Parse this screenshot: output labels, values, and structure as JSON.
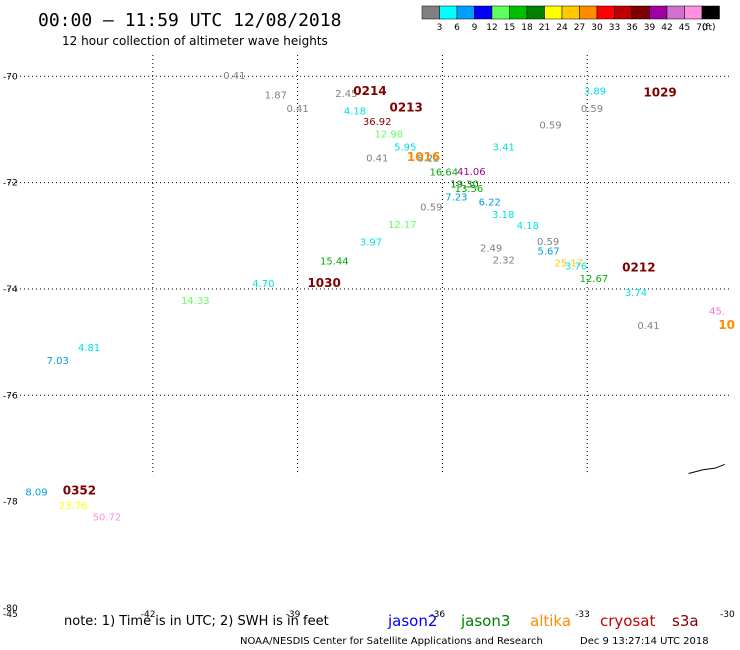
{
  "header": {
    "title": "00:00 – 11:59 UTC 12/08/2018",
    "subtitle": "12 hour collection of altimeter wave heights"
  },
  "legend": {
    "bins": [
      {
        "label": "3",
        "color": "#808080"
      },
      {
        "label": "6",
        "color": "#00ffff"
      },
      {
        "label": "9",
        "color": "#00a0ff"
      },
      {
        "label": "12",
        "color": "#0000ff"
      },
      {
        "label": "15",
        "color": "#60ff60"
      },
      {
        "label": "18",
        "color": "#00c000"
      },
      {
        "label": "21",
        "color": "#008000"
      },
      {
        "label": "24",
        "color": "#ffff00"
      },
      {
        "label": "27",
        "color": "#ffc800"
      },
      {
        "label": "30",
        "color": "#ff8c00"
      },
      {
        "label": "33",
        "color": "#ff0000"
      },
      {
        "label": "36",
        "color": "#c00000"
      },
      {
        "label": "39",
        "color": "#800000"
      },
      {
        "label": "42",
        "color": "#a000a0"
      },
      {
        "label": "45",
        "color": "#d070d0"
      },
      {
        "label": "70",
        "color": "#ff90e0"
      },
      {
        "label": "",
        "color": "#000000"
      }
    ],
    "unit": "(ft)"
  },
  "footer": {
    "note": "note: 1) Time is in UTC; 2) SWH is in feet",
    "credit_left": "NOAA/NESDIS Center for Satellite Applications and Research",
    "credit_right": "Dec  9 13:27:14 UTC 2018",
    "satellites": [
      {
        "name": "jason2",
        "color": "#0000ff"
      },
      {
        "name": "jason3",
        "color": "#008000"
      },
      {
        "name": "altika",
        "color": "#ff8c00"
      },
      {
        "name": "cryosat",
        "color": "#c00000"
      },
      {
        "name": "s3a",
        "color": "#800000"
      }
    ]
  },
  "chart_data": {
    "type": "scatter",
    "lat_ticks": [
      "-70",
      "-72",
      "-74",
      "-76",
      "-78",
      "-80"
    ],
    "lon_ticks": [
      "-45",
      "-42",
      "-39",
      "-36",
      "-33",
      "-30"
    ],
    "xlim": [
      -45,
      -30
    ],
    "ylim": [
      -80,
      -69.6
    ],
    "grid": true,
    "wave_heights": [
      {
        "lon": -40.31,
        "lat": -70.05,
        "label": "0.41",
        "color": "#808080"
      },
      {
        "lon": -39.45,
        "lat": -70.42,
        "label": "1.87",
        "color": "#808080"
      },
      {
        "lon": -39.0,
        "lat": -70.67,
        "label": "0.41",
        "color": "#808080"
      },
      {
        "lon": -37.99,
        "lat": -70.39,
        "label": "2.45",
        "color": "#808080"
      },
      {
        "lon": -37.81,
        "lat": -70.72,
        "label": "4.18",
        "color": "#00e0e0"
      },
      {
        "lon": -37.35,
        "lat": -70.92,
        "label": "36.92",
        "color": "#800000"
      },
      {
        "lon": -37.11,
        "lat": -71.15,
        "label": "12.98",
        "color": "#60ff60"
      },
      {
        "lon": -36.77,
        "lat": -71.4,
        "label": "5.95",
        "color": "#00e0e0"
      },
      {
        "lon": -37.35,
        "lat": -71.6,
        "label": "0.41",
        "color": "#808080"
      },
      {
        "lon": -36.29,
        "lat": -71.6,
        "label": "8.22",
        "color": "#00a0e0"
      },
      {
        "lon": -35.97,
        "lat": -71.87,
        "label": "16.64",
        "color": "#00b000"
      },
      {
        "lon": -35.4,
        "lat": -71.86,
        "label": "41.06",
        "color": "#a000a0"
      },
      {
        "lon": -35.54,
        "lat": -72.09,
        "label": "19.30",
        "color": "#008000"
      },
      {
        "lon": -35.45,
        "lat": -72.18,
        "label": "13.56",
        "color": "#00b000"
      },
      {
        "lon": -35.71,
        "lat": -72.34,
        "label": "7.23",
        "color": "#00a0e0"
      },
      {
        "lon": -36.23,
        "lat": -72.52,
        "label": "0.59",
        "color": "#808080"
      },
      {
        "lon": -35.02,
        "lat": -72.43,
        "label": "6.22",
        "color": "#00a0e0"
      },
      {
        "lon": -34.74,
        "lat": -72.67,
        "label": "3.18",
        "color": "#00e0e0"
      },
      {
        "lon": -34.23,
        "lat": -72.87,
        "label": "4.18",
        "color": "#00e0e0"
      },
      {
        "lon": -36.83,
        "lat": -72.85,
        "label": "12.17",
        "color": "#60ff60"
      },
      {
        "lon": -37.48,
        "lat": -73.18,
        "label": "3.97",
        "color": "#00e0e0"
      },
      {
        "lon": -33.81,
        "lat": -73.17,
        "label": "0.59",
        "color": "#808080"
      },
      {
        "lon": -34.99,
        "lat": -73.3,
        "label": "2.49",
        "color": "#808080"
      },
      {
        "lon": -34.73,
        "lat": -73.52,
        "label": "2.32",
        "color": "#808080"
      },
      {
        "lon": -33.8,
        "lat": -73.35,
        "label": "5.67",
        "color": "#00a0e0"
      },
      {
        "lon": -38.24,
        "lat": -73.54,
        "label": "15.44",
        "color": "#00b000"
      },
      {
        "lon": -33.38,
        "lat": -73.58,
        "label": "25.17",
        "color": "#ffc800"
      },
      {
        "lon": -33.23,
        "lat": -73.63,
        "label": "3.76",
        "color": "#00e0e0"
      },
      {
        "lon": -32.86,
        "lat": -73.87,
        "label": "12.67",
        "color": "#00b000"
      },
      {
        "lon": -39.71,
        "lat": -73.96,
        "label": "4.70",
        "color": "#00e0e0"
      },
      {
        "lon": -41.12,
        "lat": -74.28,
        "label": "14.33",
        "color": "#60ff60"
      },
      {
        "lon": -31.99,
        "lat": -74.13,
        "label": "3.74",
        "color": "#00e0e0"
      },
      {
        "lon": -30.31,
        "lat": -74.48,
        "label": "45.",
        "color": "#ff70e0"
      },
      {
        "lon": -31.73,
        "lat": -74.75,
        "label": "0.41",
        "color": "#808080"
      },
      {
        "lon": -43.32,
        "lat": -75.17,
        "label": "4.81",
        "color": "#00e0e0"
      },
      {
        "lon": -43.97,
        "lat": -75.41,
        "label": "7.03",
        "color": "#00a0e0"
      },
      {
        "lon": -44.41,
        "lat": -77.88,
        "label": "8.09",
        "color": "#00a0e0"
      },
      {
        "lon": -43.65,
        "lat": -78.14,
        "label": "23.76",
        "color": "#ffff00"
      },
      {
        "lon": -42.95,
        "lat": -78.35,
        "label": "50.72",
        "color": "#ff90e0"
      }
    ],
    "times": [
      {
        "lon": -37.5,
        "lat": -70.35,
        "label": "0214",
        "color": "#800000"
      },
      {
        "lon": -36.75,
        "lat": -70.66,
        "label": "0213",
        "color": "#800000"
      },
      {
        "lon": -36.39,
        "lat": -71.59,
        "label": "1016",
        "color": "#ff8c00"
      },
      {
        "lon": -31.49,
        "lat": -70.38,
        "label": "1029",
        "color": "#800000"
      },
      {
        "lon": -31.93,
        "lat": -73.67,
        "label": "0212",
        "color": "#800000"
      },
      {
        "lon": -38.45,
        "lat": -73.96,
        "label": "1030",
        "color": "#800000"
      },
      {
        "lon": -30.11,
        "lat": -74.75,
        "label": "10",
        "color": "#ff8c00"
      },
      {
        "lon": -43.52,
        "lat": -77.87,
        "label": "0352",
        "color": "#800000"
      }
    ],
    "other_values": [
      {
        "lon": -32.84,
        "lat": -70.34,
        "label": "3.89",
        "color": "#00e0e0"
      },
      {
        "lon": -32.9,
        "lat": -70.67,
        "label": "0.59",
        "color": "#808080"
      },
      {
        "lon": -33.76,
        "lat": -70.98,
        "label": "0.59",
        "color": "#808080"
      },
      {
        "lon": -34.73,
        "lat": -71.4,
        "label": "3.41",
        "color": "#00e0e0"
      }
    ],
    "coastline": [
      [
        -30.9,
        -77.47
      ],
      [
        -30.6,
        -77.4
      ],
      [
        -30.35,
        -77.37
      ],
      [
        -30.15,
        -77.3
      ]
    ]
  }
}
